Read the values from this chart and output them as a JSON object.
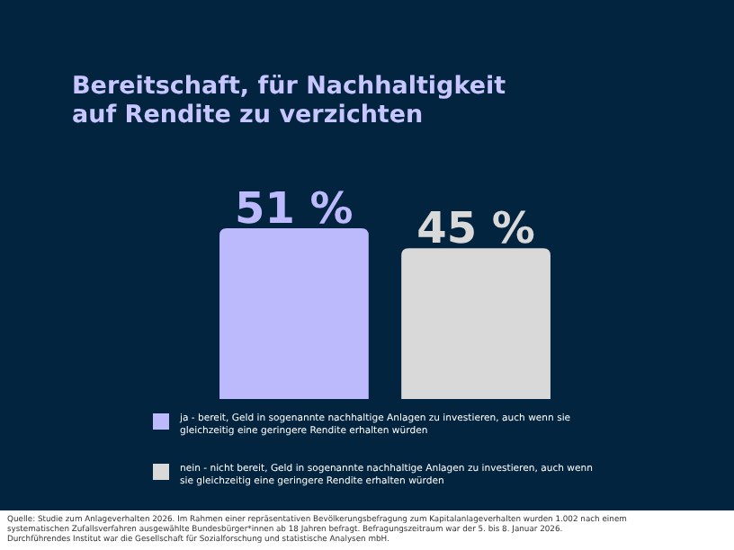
{
  "chart_data": {
    "type": "bar",
    "title": "Bereitschaft, für Nachhaltigkeit\nauf Rendite zu verzichten",
    "categories": [
      null
    ],
    "series": [
      {
        "name": "ja - bereit, Geld in sogenannte nachhaltige Anlagen zu investieren, auch wenn sie\ngleichzeitig eine geringere Rendite erhalten würden",
        "color": "#bcbafc",
        "values": [
          51
        ],
        "value_labels": [
          "51 %"
        ]
      },
      {
        "name": "nein - nicht bereit, Geld in sogenannte nachhaltige Anlagen zu investieren, auch wenn\nsie gleichzeitig eine geringere Rendite erhalten würden",
        "color": "#d9d9d9",
        "values": [
          45
        ],
        "value_labels": [
          "45 %"
        ]
      }
    ],
    "legend": "bottom left",
    "annotations": [
      "Quelle: Studie zum Anlageverhalten 2026. Im Rahmen einer repräsentativen Bevölkerungsbefragung zum Kapitalanlageverhalten wurden 1.002 nach einem\nsystematischen Zufallsverfahren ausgewählte Bundesbürger*innen ab 18 Jahren befragt. Befragungszeitraum war der 5. bis 8. Januar 2026.\nDurchführendes Institut war die Gesellschaft für Sozialforschung und statistische Analysen mbH."
    ]
  }
}
